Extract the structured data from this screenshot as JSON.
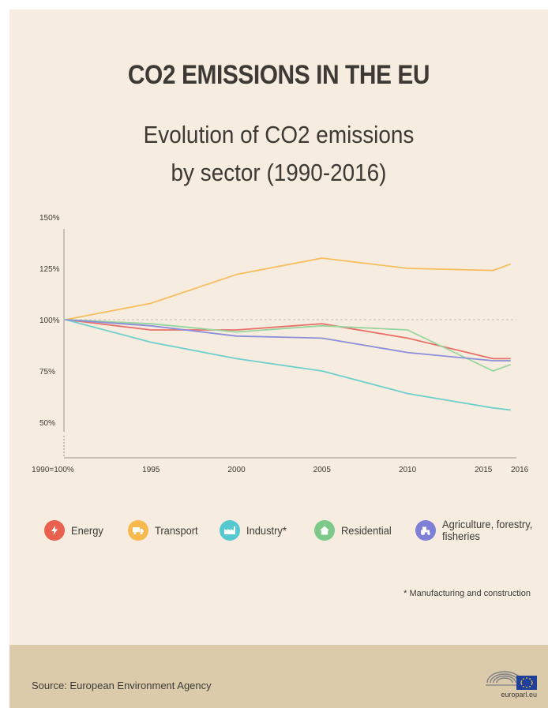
{
  "header": {
    "title": "CO2 EMISSIONS IN THE EU",
    "subtitle_line1": "Evolution of CO2 emissions",
    "subtitle_line2": "by sector (1990-2016)"
  },
  "chart_data": {
    "type": "line",
    "title": "Evolution of CO2 emissions by sector (1990-2016)",
    "x": [
      1990,
      1995,
      2000,
      2005,
      2010,
      2015,
      2016
    ],
    "x_tick_labels": [
      "1990=100%",
      "1995",
      "2000",
      "2005",
      "2010",
      "2015",
      "2016"
    ],
    "y_tick_labels": [
      "150%",
      "125%",
      "100%",
      "75%",
      "50%"
    ],
    "y_ticks": [
      150,
      125,
      100,
      75,
      50
    ],
    "ylim": [
      40,
      150
    ],
    "reference_line": 100,
    "series": [
      {
        "name": "Energy",
        "color": "#e8716a",
        "values": [
          100,
          95,
          95,
          98,
          91,
          81,
          81
        ]
      },
      {
        "name": "Transport",
        "color": "#f7bd5e",
        "values": [
          100,
          108,
          122,
          130,
          125,
          124,
          127
        ]
      },
      {
        "name": "Industry*",
        "color": "#6fcfcd",
        "values": [
          100,
          89,
          81,
          75,
          64,
          57,
          56
        ]
      },
      {
        "name": "Residential",
        "color": "#97d59e",
        "values": [
          100,
          98,
          94,
          97,
          95,
          75,
          78
        ]
      },
      {
        "name": "Agriculture, forestry, fisheries",
        "color": "#8c8fdb",
        "values": [
          100,
          97,
          92,
          91,
          84,
          80,
          80
        ]
      }
    ],
    "grid": false,
    "legend_position": "bottom"
  },
  "legend": [
    {
      "label": "Energy",
      "color": "#e8614f",
      "icon": "lightning-icon"
    },
    {
      "label": "Transport",
      "color": "#f7b84e",
      "icon": "truck-icon"
    },
    {
      "label": "Industry*",
      "color": "#56c8cf",
      "icon": "factory-icon"
    },
    {
      "label": "Residential",
      "color": "#7cc98a",
      "icon": "house-icon"
    },
    {
      "label": "Agriculture, forestry,",
      "label_line2": "fisheries",
      "color": "#7d80d6",
      "icon": "tractor-icon"
    }
  ],
  "footnote": "* Manufacturing and construction",
  "footer": {
    "source": "Source: European Environment Agency",
    "logo_text": "europarl.eu"
  }
}
